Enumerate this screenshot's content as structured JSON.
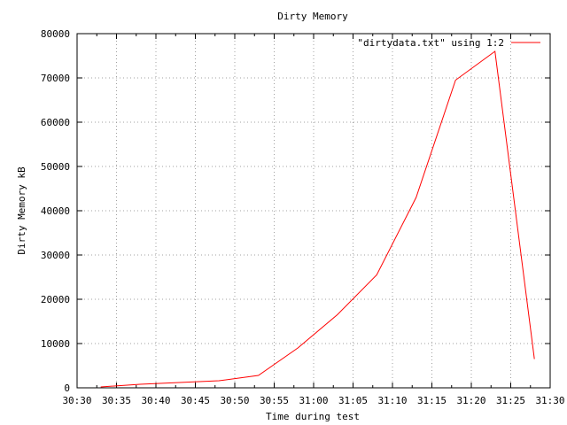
{
  "chart_data": {
    "type": "line",
    "title": "Dirty Memory",
    "xlabel": "Time during test",
    "ylabel": "Dirty Memory kB",
    "xlim": [
      "30:30",
      "31:30"
    ],
    "ylim": [
      0,
      80000
    ],
    "x_ticks": [
      "30:30",
      "30:35",
      "30:40",
      "30:45",
      "30:50",
      "30:55",
      "31:00",
      "31:05",
      "31:10",
      "31:15",
      "31:20",
      "31:25",
      "31:30"
    ],
    "y_ticks": [
      "0",
      "10000",
      "20000",
      "30000",
      "40000",
      "50000",
      "60000",
      "70000",
      "80000"
    ],
    "grid": true,
    "legend_position": "top-right",
    "series": [
      {
        "name": "\"dirtydata.txt\" using 1:2",
        "color": "#ff0000",
        "points": [
          [
            "30:33",
            200
          ],
          [
            "30:38",
            800
          ],
          [
            "30:43",
            1200
          ],
          [
            "30:48",
            1600
          ],
          [
            "30:53",
            2800
          ],
          [
            "30:58",
            9000
          ],
          [
            "31:03",
            16500
          ],
          [
            "31:08",
            25500
          ],
          [
            "31:13",
            43000
          ],
          [
            "31:18",
            69500
          ],
          [
            "31:23",
            76000
          ],
          [
            "31:28",
            6500
          ]
        ]
      }
    ]
  }
}
